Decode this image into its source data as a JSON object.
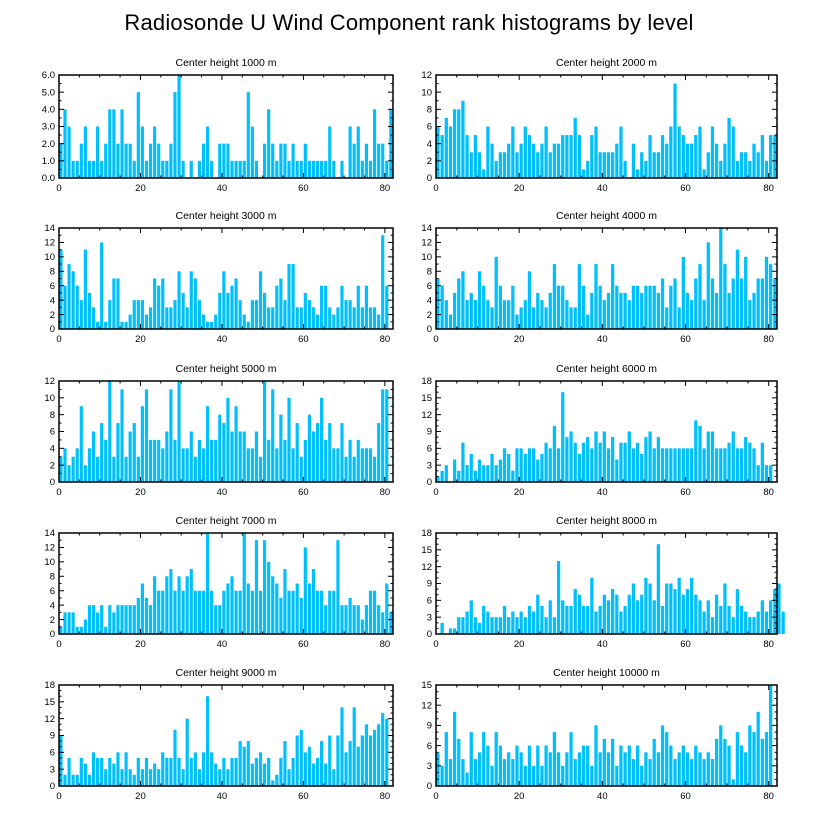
{
  "title": "Radiosonde U Wind Component rank histograms by level",
  "colors": {
    "bar": "#00bfff",
    "axis": "#000000"
  },
  "chart_data": [
    {
      "type": "bar",
      "title": "Center height 1000 m",
      "xlim": [
        0,
        82
      ],
      "ylim": [
        0,
        6
      ],
      "xticks": [
        0,
        20,
        40,
        60,
        80
      ],
      "yticks": [
        "0.0",
        "1.0",
        "2.0",
        "3.0",
        "4.0",
        "5.0",
        "6.0"
      ],
      "values": [
        2,
        4,
        3,
        1,
        1,
        2,
        3,
        1,
        1,
        3,
        1,
        2,
        4,
        4,
        2,
        4,
        2,
        2,
        1,
        5,
        3,
        1,
        2,
        3,
        2,
        1,
        1,
        2,
        5,
        6,
        1,
        0,
        1,
        0,
        1,
        2,
        3,
        1,
        0,
        2,
        2,
        2,
        1,
        1,
        1,
        1,
        5,
        3,
        1,
        0,
        2,
        4,
        2,
        1,
        2,
        2,
        1,
        2,
        1,
        1,
        2,
        1,
        1,
        1,
        1,
        1,
        3,
        1,
        0,
        1,
        0,
        3,
        2,
        3,
        1,
        2,
        1,
        4,
        2,
        2,
        1,
        4
      ]
    },
    {
      "type": "bar",
      "title": "Center height 2000 m",
      "xlim": [
        0,
        82
      ],
      "ylim": [
        0,
        12
      ],
      "xticks": [
        0,
        20,
        40,
        60,
        80
      ],
      "yticks": [
        "0",
        "2",
        "4",
        "6",
        "8",
        "10",
        "12"
      ],
      "values": [
        6,
        5,
        7,
        6,
        8,
        8,
        9,
        5,
        3,
        5,
        3,
        1,
        6,
        4,
        2,
        3,
        3,
        4,
        6,
        3,
        4,
        6,
        5,
        4,
        3,
        4,
        6,
        3,
        4,
        4,
        5,
        5,
        5,
        7,
        5,
        1,
        2,
        5,
        6,
        3,
        3,
        3,
        3,
        4,
        6,
        2,
        0,
        4,
        1,
        3,
        2,
        5,
        3,
        3,
        5,
        4,
        6,
        11,
        6,
        5,
        4,
        4,
        5,
        6,
        1,
        3,
        6,
        4,
        2,
        4,
        7,
        6,
        2,
        3,
        3,
        2,
        4,
        3,
        5,
        2,
        5,
        5
      ]
    },
    {
      "type": "bar",
      "title": "Center height 3000 m",
      "xlim": [
        0,
        82
      ],
      "ylim": [
        0,
        14
      ],
      "xticks": [
        0,
        20,
        40,
        60,
        80
      ],
      "yticks": [
        "0",
        "2",
        "4",
        "6",
        "8",
        "10",
        "12",
        "14"
      ],
      "values": [
        11,
        6,
        9,
        8,
        6,
        4,
        11,
        5,
        3,
        1,
        12,
        1,
        4,
        7,
        7,
        1,
        1,
        2,
        4,
        4,
        4,
        2,
        3,
        7,
        6,
        7,
        3,
        3,
        4,
        8,
        5,
        3,
        8,
        7,
        4,
        2,
        1,
        1,
        2,
        5,
        8,
        5,
        6,
        7,
        4,
        2,
        1,
        4,
        4,
        8,
        5,
        3,
        3,
        6,
        7,
        4,
        9,
        9,
        3,
        3,
        5,
        4,
        3,
        2,
        6,
        6,
        3,
        2,
        3,
        6,
        4,
        4,
        3,
        6,
        3,
        6,
        3,
        3,
        2,
        13,
        6
      ]
    },
    {
      "type": "bar",
      "title": "Center height 4000 m",
      "xlim": [
        0,
        82
      ],
      "ylim": [
        0,
        14
      ],
      "xticks": [
        0,
        20,
        40,
        60,
        80
      ],
      "yticks": [
        "0",
        "2",
        "4",
        "6",
        "8",
        "10",
        "12",
        "14"
      ],
      "values": [
        7,
        6,
        4,
        2,
        5,
        7,
        8,
        4,
        5,
        4,
        8,
        6,
        4,
        3,
        10,
        6,
        4,
        4,
        6,
        2,
        3,
        4,
        8,
        3,
        5,
        4,
        3,
        5,
        9,
        6,
        6,
        4,
        3,
        3,
        9,
        6,
        2,
        5,
        9,
        6,
        4,
        5,
        9,
        6,
        5,
        5,
        4,
        6,
        6,
        5,
        6,
        6,
        6,
        5,
        7,
        3,
        6,
        7,
        3,
        10,
        5,
        4,
        7,
        9,
        4,
        12,
        7,
        5,
        14,
        9,
        5,
        7,
        11,
        7,
        10,
        4,
        5,
        7,
        7,
        10,
        9,
        7
      ]
    },
    {
      "type": "bar",
      "title": "Center height 5000 m",
      "xlim": [
        0,
        82
      ],
      "ylim": [
        0,
        12
      ],
      "xticks": [
        0,
        20,
        40,
        60,
        80
      ],
      "yticks": [
        "0",
        "2",
        "4",
        "6",
        "8",
        "10",
        "12"
      ],
      "values": [
        3,
        4,
        2,
        3,
        4,
        9,
        2,
        4,
        6,
        3,
        7,
        5,
        12,
        3,
        7,
        11,
        3,
        6,
        7,
        3,
        9,
        11,
        5,
        5,
        5,
        4,
        6,
        11,
        5,
        12,
        4,
        4,
        6,
        3,
        5,
        4,
        9,
        5,
        5,
        8,
        7,
        10,
        6,
        9,
        6,
        6,
        4,
        4,
        6,
        3,
        12,
        5,
        11,
        4,
        8,
        5,
        10,
        4,
        7,
        3,
        5,
        8,
        6,
        7,
        10,
        5,
        7,
        4,
        4,
        7,
        3,
        5,
        3,
        5,
        4,
        4,
        4,
        3,
        7,
        11,
        11
      ]
    },
    {
      "type": "bar",
      "title": "Center height 6000 m",
      "xlim": [
        0,
        82
      ],
      "ylim": [
        0,
        18
      ],
      "xticks": [
        0,
        20,
        40,
        60,
        80
      ],
      "yticks": [
        "0",
        "3",
        "6",
        "9",
        "12",
        "15",
        "18"
      ],
      "values": [
        1,
        2,
        3,
        0,
        4,
        2,
        7,
        3,
        5,
        2,
        4,
        3,
        3,
        5,
        3,
        4,
        6,
        5,
        2,
        6,
        6,
        5,
        6,
        6,
        4,
        5,
        7,
        6,
        10,
        6,
        16,
        8,
        9,
        7,
        5,
        7,
        8,
        6,
        9,
        7,
        9,
        6,
        8,
        4,
        7,
        7,
        9,
        6,
        7,
        5,
        8,
        9,
        6,
        8,
        6,
        6,
        6,
        6,
        6,
        6,
        6,
        6,
        11,
        10,
        6,
        9,
        9,
        6,
        6,
        6,
        7,
        9,
        6,
        6,
        8,
        7,
        6,
        3,
        7,
        3,
        3
      ]
    },
    {
      "type": "bar",
      "title": "Center height 7000 m",
      "xlim": [
        0,
        82
      ],
      "ylim": [
        0,
        14
      ],
      "xticks": [
        0,
        20,
        40,
        60,
        80
      ],
      "yticks": [
        "0",
        "2",
        "4",
        "6",
        "8",
        "10",
        "12",
        "14"
      ],
      "values": [
        1,
        3,
        3,
        3,
        1,
        1,
        2,
        4,
        4,
        3,
        4,
        1,
        4,
        3,
        4,
        4,
        4,
        4,
        4,
        5,
        7,
        5,
        4,
        8,
        6,
        6,
        8,
        9,
        6,
        8,
        6,
        8,
        9,
        6,
        6,
        6,
        14,
        6,
        4,
        4,
        6,
        7,
        8,
        6,
        6,
        14,
        7,
        6,
        13,
        6,
        13,
        10,
        8,
        7,
        5,
        9,
        6,
        6,
        7,
        5,
        12,
        7,
        9,
        6,
        6,
        4,
        6,
        6,
        13,
        4,
        4,
        5,
        4,
        4,
        2,
        4,
        6,
        6,
        4,
        3,
        7,
        3
      ]
    },
    {
      "type": "bar",
      "title": "Center height 8000 m",
      "xlim": [
        0,
        82
      ],
      "ylim": [
        0,
        18
      ],
      "xticks": [
        0,
        20,
        40,
        60,
        80
      ],
      "yticks": [
        "0",
        "3",
        "6",
        "9",
        "12",
        "15",
        "18"
      ],
      "values": [
        0,
        2,
        0,
        1,
        1,
        3,
        3,
        4,
        6,
        3,
        2,
        5,
        4,
        3,
        3,
        3,
        5,
        3,
        4,
        3,
        4,
        3,
        5,
        4,
        7,
        5,
        3,
        6,
        3,
        13,
        6,
        5,
        5,
        8,
        7,
        5,
        5,
        10,
        4,
        5,
        7,
        6,
        8,
        7,
        4,
        5,
        7,
        9,
        6,
        7,
        10,
        9,
        6,
        16,
        5,
        9,
        9,
        8,
        10,
        7,
        8,
        10,
        7,
        6,
        4,
        6,
        3,
        7,
        5,
        9,
        5,
        3,
        8,
        5,
        4,
        3,
        3,
        4,
        6,
        4,
        6,
        8,
        9,
        4
      ]
    },
    {
      "type": "bar",
      "title": "Center height 9000 m",
      "xlim": [
        0,
        82
      ],
      "ylim": [
        0,
        18
      ],
      "xticks": [
        0,
        20,
        40,
        60,
        80
      ],
      "yticks": [
        "0",
        "3",
        "6",
        "9",
        "12",
        "15",
        "18"
      ],
      "values": [
        9,
        2,
        5,
        2,
        2,
        5,
        4,
        2,
        6,
        5,
        5,
        3,
        5,
        4,
        6,
        3,
        6,
        3,
        2,
        5,
        3,
        5,
        3,
        4,
        3,
        6,
        5,
        5,
        10,
        5,
        3,
        12,
        5,
        6,
        3,
        6,
        16,
        6,
        4,
        3,
        5,
        3,
        5,
        5,
        8,
        7,
        8,
        4,
        5,
        6,
        4,
        5,
        1,
        2,
        5,
        8,
        3,
        5,
        9,
        10,
        6,
        7,
        4,
        5,
        8,
        4,
        9,
        3,
        9,
        14,
        6,
        8,
        14,
        7,
        9,
        11,
        9,
        10,
        11,
        13,
        12
      ]
    },
    {
      "type": "bar",
      "title": "Center height 10000 m",
      "xlim": [
        0,
        82
      ],
      "ylim": [
        0,
        15
      ],
      "xticks": [
        0,
        20,
        40,
        60,
        80
      ],
      "yticks": [
        "0",
        "3",
        "6",
        "9",
        "12",
        "15"
      ],
      "values": [
        5,
        3,
        8,
        4,
        11,
        7,
        4,
        2,
        8,
        4,
        5,
        8,
        6,
        3,
        8,
        6,
        4,
        5,
        4,
        6,
        5,
        3,
        6,
        3,
        6,
        3,
        6,
        5,
        8,
        5,
        3,
        5,
        8,
        4,
        5,
        6,
        6,
        3,
        9,
        5,
        7,
        5,
        7,
        3,
        6,
        5,
        6,
        4,
        6,
        3,
        5,
        4,
        7,
        5,
        9,
        8,
        6,
        4,
        5,
        6,
        5,
        4,
        6,
        5,
        4,
        5,
        4,
        7,
        9,
        7,
        6,
        1,
        8,
        6,
        5,
        9,
        8,
        11,
        7,
        8,
        15
      ]
    }
  ]
}
